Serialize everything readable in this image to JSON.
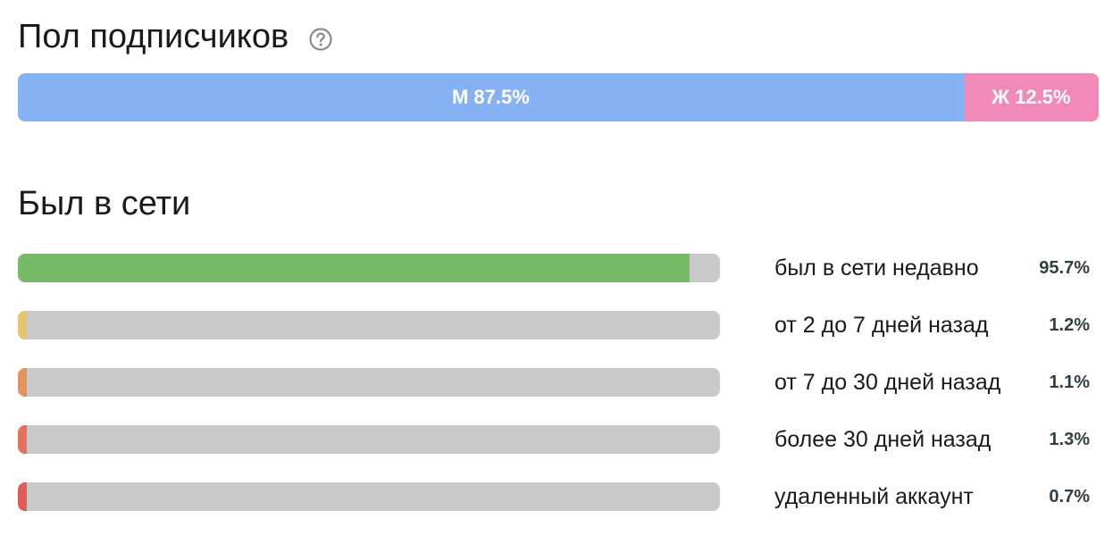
{
  "gender": {
    "title": "Пол подписчиков",
    "help_icon": "question-circle-icon",
    "segments": [
      {
        "label": "М 87.5%",
        "value": 87.5,
        "color": "#86b1f3"
      },
      {
        "label": "Ж 12.5%",
        "value": 12.5,
        "color": "#ef8ab9"
      }
    ]
  },
  "online": {
    "title": "Был в сети",
    "rows": [
      {
        "label": "был в сети недавно",
        "pct": "95.7%",
        "value": 95.7,
        "color": "#77bb68"
      },
      {
        "label": "от 2 до 7 дней назад",
        "pct": "1.2%",
        "value": 1.2,
        "color": "#e9c36e"
      },
      {
        "label": "от 7 до 30 дней назад",
        "pct": "1.1%",
        "value": 1.1,
        "color": "#e4935f"
      },
      {
        "label": "более 30 дней назад",
        "pct": "1.3%",
        "value": 1.3,
        "color": "#e0735c"
      },
      {
        "label": "удаленный аккаунт",
        "pct": "0.7%",
        "value": 0.7,
        "color": "#de5d5a"
      }
    ]
  },
  "chart_data": [
    {
      "type": "bar",
      "title": "Пол подписчиков",
      "orientation": "horizontal-stacked",
      "categories": [
        "М",
        "Ж"
      ],
      "values": [
        87.5,
        12.5
      ],
      "unit": "%"
    },
    {
      "type": "bar",
      "title": "Был в сети",
      "orientation": "horizontal",
      "categories": [
        "был в сети недавно",
        "от 2 до 7 дней назад",
        "от 7 до 30 дней назад",
        "более 30 дней назад",
        "удаленный аккаунт"
      ],
      "values": [
        95.7,
        1.2,
        1.1,
        1.3,
        0.7
      ],
      "unit": "%",
      "xlim": [
        0,
        100
      ]
    }
  ]
}
